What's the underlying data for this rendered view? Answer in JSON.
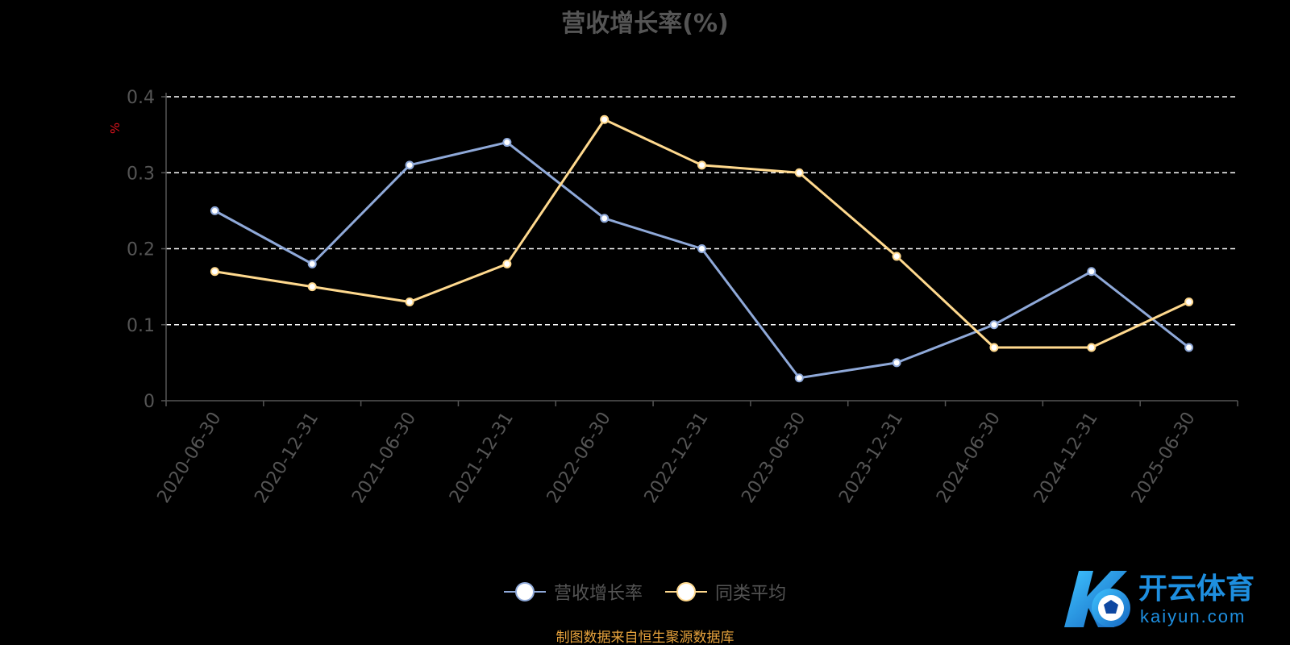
{
  "chart_data": {
    "type": "line",
    "title": "营收增长率(%)",
    "ylabel": "%",
    "ylim": [
      0,
      0.4
    ],
    "yticks": [
      0,
      0.1,
      0.2,
      0.3,
      0.4
    ],
    "ytick_labels": [
      "0",
      "0.1",
      "0.2",
      "0.3",
      "0.4"
    ],
    "grid": true,
    "legend_position": "bottom",
    "categories": [
      "2020-06-30",
      "2020-12-31",
      "2021-06-30",
      "2021-12-31",
      "2022-06-30",
      "2022-12-31",
      "2023-06-30",
      "2023-12-31",
      "2024-06-30",
      "2024-12-31",
      "2025-06-30"
    ],
    "series": [
      {
        "name": "营收增长率",
        "color": "#8fa9d9",
        "values": [
          0.25,
          0.18,
          0.31,
          0.34,
          0.24,
          0.2,
          0.03,
          0.05,
          0.1,
          0.17,
          0.07
        ]
      },
      {
        "name": "同类平均",
        "color": "#ffd98e",
        "values": [
          0.17,
          0.15,
          0.13,
          0.18,
          0.37,
          0.31,
          0.3,
          0.19,
          0.07,
          0.07,
          0.13
        ]
      }
    ]
  },
  "source_note": "制图数据来自恒生聚源数据库",
  "watermark": {
    "brand": "开云体育",
    "domain": "kaiyun.com"
  },
  "colors": {
    "background": "#000000",
    "text": "#555555",
    "grid": "#ffffff",
    "unit": "#e0141e",
    "source": "#e6a23c",
    "watermark": "#1e8fe0"
  }
}
